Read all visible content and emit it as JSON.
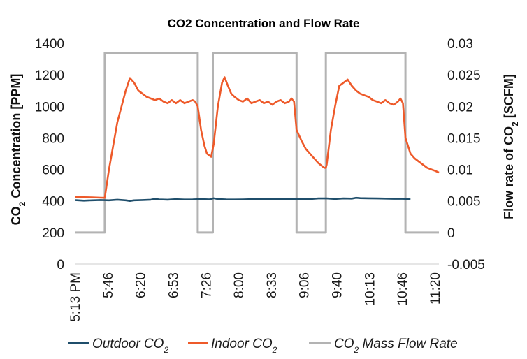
{
  "chart_data": {
    "type": "line",
    "title": "CO2 Concentration and Flow Rate",
    "ylabel_left": {
      "main": "CO",
      "sub": "2",
      "rest": " Concentration [PPM]"
    },
    "ylabel_right": {
      "main": "Flow rate of CO",
      "sub": "2",
      "rest": " [SCFM]"
    },
    "y_left": {
      "lim": [
        0,
        1400
      ],
      "ticks": [
        "0",
        "200",
        "400",
        "600",
        "800",
        "1000",
        "1200",
        "1400"
      ]
    },
    "y_right": {
      "lim": [
        -0.005,
        0.03
      ],
      "ticks": [
        "-0.005",
        "0",
        "0.005",
        "0.01",
        "0.015",
        "0.02",
        "0.025",
        "0.03"
      ]
    },
    "x_ticks": [
      "5:13 PM",
      "5:46",
      "6:20",
      "6:53",
      "7:26",
      "8:00",
      "8:33",
      "9:06",
      "9:40",
      "10:13",
      "10:46",
      "11:20"
    ],
    "colors": {
      "outdoor": "#1f4e6b",
      "indoor": "#ee5a2a",
      "flow": "#b3b3b3",
      "axis": "#cccccc"
    },
    "series": [
      {
        "name": "Outdoor CO2",
        "axis": "left",
        "points": [
          [
            0,
            405
          ],
          [
            1,
            402
          ],
          [
            2,
            404
          ],
          [
            3,
            406
          ],
          [
            4,
            404
          ],
          [
            5,
            408
          ],
          [
            6,
            404
          ],
          [
            6.5,
            400
          ],
          [
            7,
            404
          ],
          [
            8,
            406
          ],
          [
            9,
            408
          ],
          [
            9.5,
            413
          ],
          [
            10,
            410
          ],
          [
            11,
            408
          ],
          [
            12,
            411
          ],
          [
            13,
            409
          ],
          [
            14,
            410
          ],
          [
            15,
            412
          ],
          [
            16,
            410
          ],
          [
            16.5,
            417
          ],
          [
            17,
            412
          ],
          [
            18,
            410
          ],
          [
            19,
            409
          ],
          [
            20,
            410
          ],
          [
            21,
            411
          ],
          [
            22,
            412
          ],
          [
            23,
            412
          ],
          [
            24,
            413
          ],
          [
            25,
            412
          ],
          [
            26,
            413
          ],
          [
            27,
            414
          ],
          [
            28,
            412
          ],
          [
            29,
            416
          ],
          [
            30,
            416
          ],
          [
            31,
            413
          ],
          [
            32,
            416
          ],
          [
            33,
            415
          ],
          [
            33.5,
            420
          ],
          [
            34,
            418
          ],
          [
            35,
            417
          ],
          [
            36,
            416
          ],
          [
            37,
            415
          ],
          [
            38,
            414
          ],
          [
            39,
            414
          ],
          [
            40,
            413
          ]
        ]
      },
      {
        "name": "Indoor CO2",
        "axis": "left",
        "points": [
          [
            0,
            425
          ],
          [
            1,
            424
          ],
          [
            2,
            423
          ],
          [
            3,
            421
          ],
          [
            3.5,
            420
          ],
          [
            4,
            600
          ],
          [
            5,
            900
          ],
          [
            6,
            1100
          ],
          [
            6.5,
            1180
          ],
          [
            7,
            1150
          ],
          [
            7.5,
            1100
          ],
          [
            8,
            1080
          ],
          [
            8.5,
            1060
          ],
          [
            9,
            1050
          ],
          [
            9.5,
            1040
          ],
          [
            10,
            1050
          ],
          [
            10.5,
            1030
          ],
          [
            11,
            1020
          ],
          [
            11.5,
            1040
          ],
          [
            12,
            1020
          ],
          [
            12.5,
            1040
          ],
          [
            13,
            1020
          ],
          [
            13.5,
            1030
          ],
          [
            14,
            1040
          ],
          [
            14.3,
            1030
          ],
          [
            14.6,
            1000
          ],
          [
            15,
            850
          ],
          [
            15.4,
            750
          ],
          [
            15.7,
            700
          ],
          [
            16.2,
            680
          ],
          [
            16.5,
            760
          ],
          [
            17,
            1000
          ],
          [
            17.5,
            1150
          ],
          [
            17.8,
            1185
          ],
          [
            18.2,
            1130
          ],
          [
            18.6,
            1080
          ],
          [
            19,
            1060
          ],
          [
            19.5,
            1040
          ],
          [
            20,
            1030
          ],
          [
            20.5,
            1050
          ],
          [
            21,
            1020
          ],
          [
            21.5,
            1030
          ],
          [
            22,
            1040
          ],
          [
            22.5,
            1020
          ],
          [
            23,
            1030
          ],
          [
            23.5,
            1010
          ],
          [
            24,
            1030
          ],
          [
            24.5,
            1040
          ],
          [
            25,
            1020
          ],
          [
            25.5,
            1030
          ],
          [
            25.8,
            1050
          ],
          [
            26.1,
            1030
          ],
          [
            26.4,
            850
          ],
          [
            27,
            780
          ],
          [
            27.5,
            730
          ],
          [
            28,
            700
          ],
          [
            28.5,
            670
          ],
          [
            29,
            640
          ],
          [
            29.7,
            610
          ],
          [
            29.9,
            610
          ],
          [
            30,
            630
          ],
          [
            30.5,
            850
          ],
          [
            31,
            1000
          ],
          [
            31.5,
            1130
          ],
          [
            32,
            1150
          ],
          [
            32.5,
            1170
          ],
          [
            33,
            1130
          ],
          [
            33.5,
            1100
          ],
          [
            34,
            1080
          ],
          [
            34.5,
            1070
          ],
          [
            35,
            1060
          ],
          [
            35.5,
            1040
          ],
          [
            36,
            1030
          ],
          [
            36.5,
            1020
          ],
          [
            37,
            1040
          ],
          [
            37.5,
            1020
          ],
          [
            38,
            1010
          ],
          [
            38.5,
            1030
          ],
          [
            38.8,
            1050
          ],
          [
            39.1,
            1020
          ],
          [
            39.4,
            800
          ],
          [
            40,
            700
          ],
          [
            40.5,
            670
          ],
          [
            41,
            650
          ],
          [
            41.5,
            630
          ],
          [
            42,
            610
          ],
          [
            42.5,
            600
          ],
          [
            43,
            590
          ],
          [
            43.4,
            580
          ]
        ]
      },
      {
        "name": "CO2 Mass Flow Rate",
        "axis": "right",
        "points": [
          [
            0,
            0
          ],
          [
            3.5,
            0
          ],
          [
            3.5,
            0.0285
          ],
          [
            14.6,
            0.0285
          ],
          [
            14.6,
            0
          ],
          [
            16.4,
            0
          ],
          [
            16.4,
            0.0285
          ],
          [
            26.4,
            0.0285
          ],
          [
            26.4,
            0
          ],
          [
            29.9,
            0
          ],
          [
            29.9,
            0.0285
          ],
          [
            39.4,
            0.0285
          ],
          [
            39.4,
            0
          ],
          [
            43.4,
            0
          ]
        ]
      }
    ],
    "x_range": [
      0,
      43.4
    ],
    "legend": [
      {
        "main": "Outdoor CO",
        "sub": "2",
        "rest": ""
      },
      {
        "main": "Indoor CO",
        "sub": "2",
        "rest": ""
      },
      {
        "main": "CO",
        "sub": "2",
        "rest": " Mass Flow Rate"
      }
    ],
    "legend_position": "bottom",
    "grid": false
  }
}
